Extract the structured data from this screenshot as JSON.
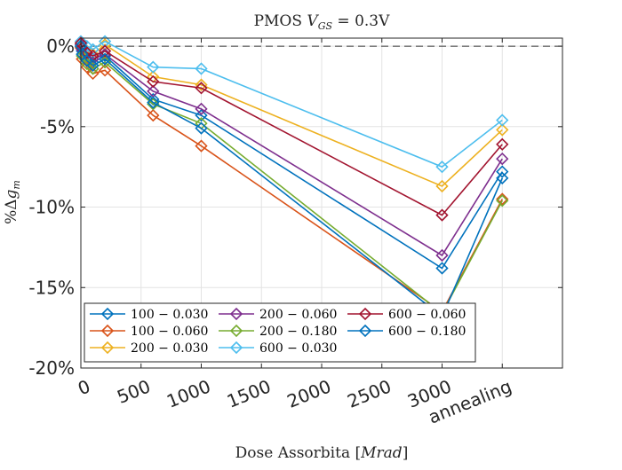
{
  "chart_data": {
    "type": "line",
    "title": "PMOS V_GS = 0.3V",
    "title_parts": {
      "main": "PMOS ",
      "var": "V",
      "sub": "GS",
      "rest": " = 0.3V"
    },
    "xlabel": "Dose Assorbita [Mrad]",
    "xlabel_parts": {
      "main": "Dose Assorbita [",
      "var": "Mrad",
      "rest": "]"
    },
    "ylabel": "%Δg_m",
    "ylabel_parts": {
      "main": "%Δ",
      "var": "g",
      "sub": "m"
    },
    "xlim": [
      0,
      4000
    ],
    "ylim": [
      -20,
      0.5
    ],
    "x_ticks": [
      {
        "value": 0,
        "label": "0"
      },
      {
        "value": 500,
        "label": "500"
      },
      {
        "value": 1000,
        "label": "1000"
      },
      {
        "value": 1500,
        "label": "1500"
      },
      {
        "value": 2000,
        "label": "2000"
      },
      {
        "value": 2500,
        "label": "2500"
      },
      {
        "value": 3000,
        "label": "3000"
      },
      {
        "value": 3500,
        "label": "annealing"
      }
    ],
    "y_ticks": [
      {
        "value": 0,
        "label": "0%"
      },
      {
        "value": -5,
        "label": "-5%"
      },
      {
        "value": -10,
        "label": "-10%"
      },
      {
        "value": -15,
        "label": "-15%"
      },
      {
        "value": -20,
        "label": "-20%"
      }
    ],
    "grid": true,
    "reference_line": {
      "y": 0,
      "style": "dashed"
    },
    "legend_position": "bottom-left",
    "legend_columns": 3,
    "x": [
      0,
      10,
      50,
      100,
      200,
      600,
      1000,
      3000,
      3500
    ],
    "series": [
      {
        "name": "100 − 0.030",
        "color": "#0072BD",
        "values": [
          0.1,
          -0.3,
          -0.8,
          -1.0,
          -0.6,
          -3.3,
          -4.3,
          -13.8,
          -7.8
        ]
      },
      {
        "name": "100 − 0.060",
        "color": "#D95319",
        "values": [
          -0.1,
          -0.8,
          -1.3,
          -1.7,
          -1.5,
          -4.3,
          -6.2,
          -16.5,
          -9.5
        ]
      },
      {
        "name": "200 − 0.030",
        "color": "#EDB120",
        "values": [
          0.2,
          0.0,
          -0.3,
          -0.5,
          0.1,
          -1.9,
          -2.4,
          -8.7,
          -5.2
        ]
      },
      {
        "name": "200 − 0.060",
        "color": "#7E2F8E",
        "values": [
          0.1,
          -0.2,
          -0.5,
          -0.8,
          -0.5,
          -2.8,
          -3.9,
          -13.0,
          -7.0
        ]
      },
      {
        "name": "200 − 0.180",
        "color": "#77AC30",
        "values": [
          0.0,
          -0.6,
          -1.1,
          -1.4,
          -1.0,
          -3.6,
          -4.8,
          -16.6,
          -9.6
        ]
      },
      {
        "name": "600 − 0.030",
        "color": "#4DBEEE",
        "values": [
          0.3,
          0.2,
          0.0,
          -0.2,
          0.3,
          -1.3,
          -1.4,
          -7.5,
          -4.6
        ]
      },
      {
        "name": "600 − 0.060",
        "color": "#A2142F",
        "values": [
          0.2,
          -0.1,
          -0.4,
          -0.6,
          -0.3,
          -2.2,
          -2.6,
          -10.5,
          -6.1
        ]
      },
      {
        "name": "600 − 0.180",
        "color": "#0072BD",
        "values": [
          0.0,
          -0.5,
          -0.9,
          -1.2,
          -0.8,
          -3.5,
          -5.1,
          -16.8,
          -8.2
        ]
      }
    ]
  }
}
